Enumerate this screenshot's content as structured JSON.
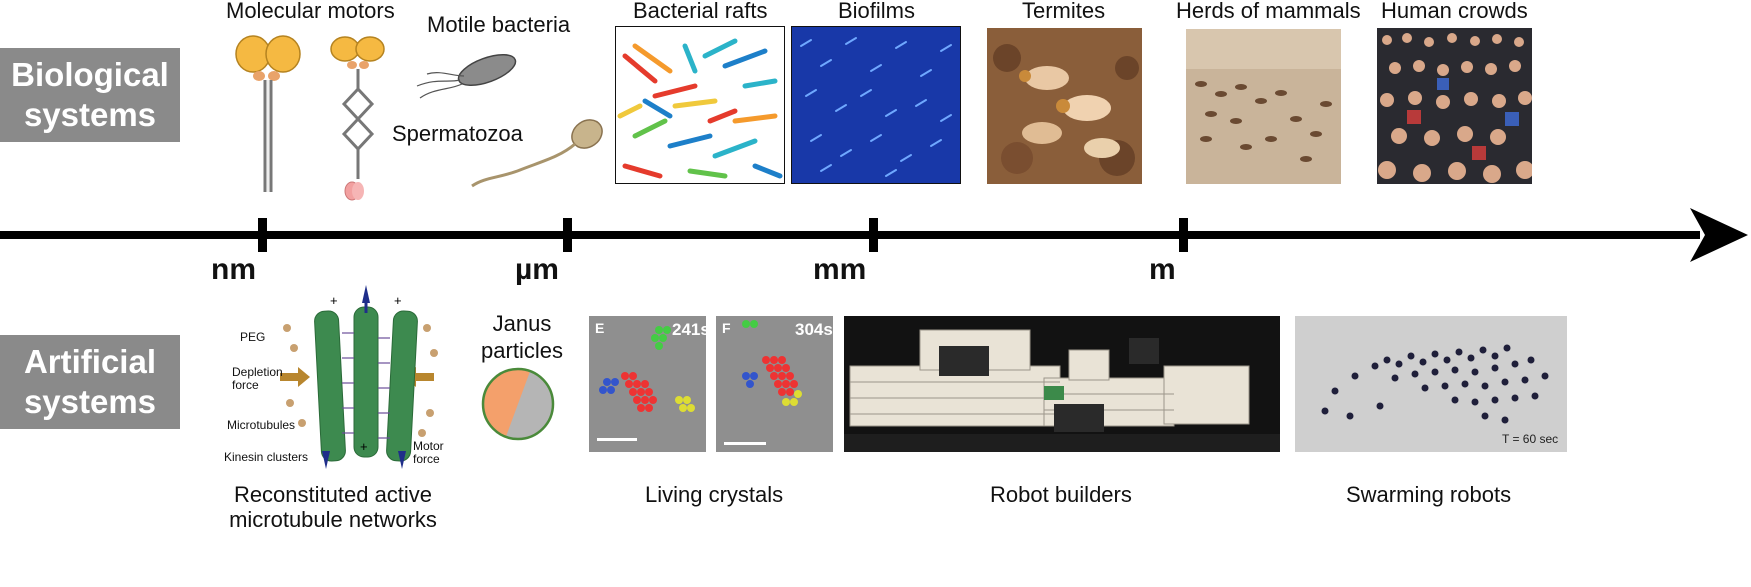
{
  "rows": {
    "biological_label": "Biological systems",
    "artificial_label": "Artificial systems"
  },
  "scale": {
    "units": [
      "nm",
      "µm",
      "mm",
      "m"
    ]
  },
  "biological": {
    "molecular_motors": "Molecular motors",
    "motile_bacteria": "Motile bacteria",
    "spermatozoa": "Spermatozoa",
    "bacterial_rafts": "Bacterial rafts",
    "biofilms": "Biofilms",
    "termites": "Termites",
    "herds": "Herds of mammals",
    "crowds": "Human crowds"
  },
  "artificial": {
    "microtubule_caption_line1": "Reconstituted active",
    "microtubule_caption_line2": "microtubule networks",
    "janus_line1": "Janus",
    "janus_line2": "particles",
    "living_crystals": "Living crystals",
    "robot_builders": "Robot builders",
    "swarming_robots": "Swarming robots",
    "panel_e_letter": "E",
    "panel_e_time": "241s",
    "panel_f_letter": "F",
    "panel_f_time": "304s",
    "swarm_time": "T = 60 sec",
    "mt_labels": {
      "peg": "PEG",
      "depletion1": "Depletion",
      "depletion2": "force",
      "microtubules": "Microtubules",
      "kinesin": "Kinesin clusters",
      "motor1": "Motor",
      "motor2": "force"
    }
  },
  "colors": {
    "label_bg": "#8a8a8a",
    "motor_head": "#f5b942",
    "janus_orange": "#f4a06b",
    "janus_grey": "#b5b5b5",
    "mt_green": "#3d8a4f"
  }
}
